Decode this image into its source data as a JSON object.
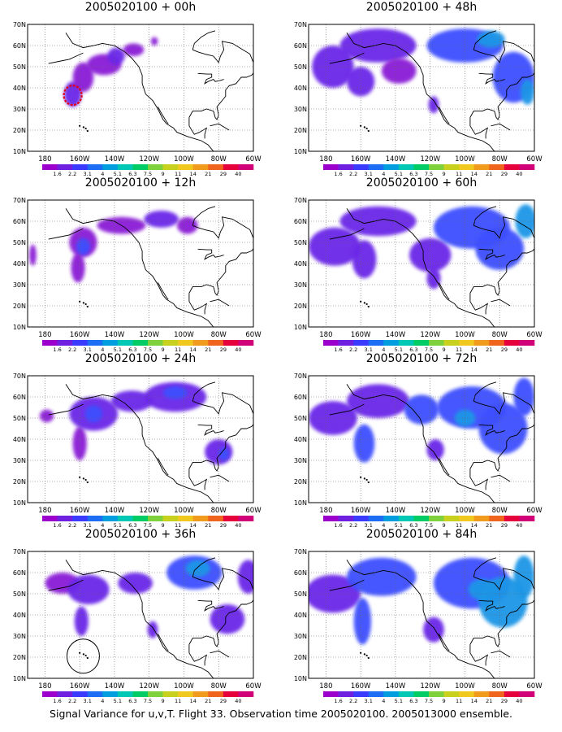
{
  "figure": {
    "caption": "Signal Variance for u,v,T. Flight 33. Observation time 2005020100. 2005013000 ensemble."
  },
  "colorbar": {
    "tick_labels": [
      "1.6",
      "2.2",
      "3.1",
      "4",
      "5.1",
      "6.3",
      "7.5",
      "9",
      "11",
      "14",
      "21",
      "29",
      "40"
    ],
    "colors": [
      "#9b00cc",
      "#6e1fe0",
      "#3b3bff",
      "#1e6ef5",
      "#009ede",
      "#00c8b4",
      "#00cc66",
      "#7ed13a",
      "#c8d21e",
      "#f0c81e",
      "#f09a1e",
      "#f0641e",
      "#e6003c",
      "#d20078"
    ]
  },
  "axes": {
    "x_ticks": [
      "180",
      "160W",
      "140W",
      "120W",
      "100W",
      "80W",
      "60W"
    ],
    "y_ticks": [
      "10N",
      "20N",
      "30N",
      "40N",
      "50N",
      "60N",
      "70N"
    ]
  },
  "chart_data": [
    {
      "type": "heatmap",
      "title": "2005020100 + 00h",
      "xlim": [
        -190,
        -60
      ],
      "ylim": [
        10,
        70
      ],
      "blobs": [
        {
          "lon": -164,
          "lat": 37,
          "rx": 5,
          "ry": 6,
          "level": 1
        },
        {
          "lon": -158,
          "lat": 45,
          "rx": 6,
          "ry": 7,
          "level": 0
        },
        {
          "lon": -146,
          "lat": 51,
          "rx": 10,
          "ry": 5,
          "level": 0
        },
        {
          "lon": -139,
          "lat": 55,
          "rx": 5,
          "ry": 4,
          "level": 1
        },
        {
          "lon": -129,
          "lat": 58,
          "rx": 6,
          "ry": 3,
          "level": 0
        },
        {
          "lon": -117,
          "lat": 62,
          "rx": 2,
          "ry": 2,
          "level": 0
        }
      ]
    },
    {
      "type": "heatmap",
      "title": "2005020100 + 12h",
      "xlim": [
        -190,
        -60
      ],
      "ylim": [
        10,
        70
      ],
      "blobs": [
        {
          "lon": -187,
          "lat": 44,
          "rx": 2,
          "ry": 5,
          "level": 0
        },
        {
          "lon": -161,
          "lat": 38,
          "rx": 4,
          "ry": 7,
          "level": 0
        },
        {
          "lon": -158,
          "lat": 50,
          "rx": 8,
          "ry": 7,
          "level": 0
        },
        {
          "lon": -158,
          "lat": 48,
          "rx": 4,
          "ry": 4,
          "level": 2
        },
        {
          "lon": -136,
          "lat": 58,
          "rx": 14,
          "ry": 4,
          "level": 0
        },
        {
          "lon": -113,
          "lat": 61,
          "rx": 10,
          "ry": 4,
          "level": 1
        },
        {
          "lon": -98,
          "lat": 58,
          "rx": 6,
          "ry": 4,
          "level": 0
        }
      ]
    },
    {
      "type": "heatmap",
      "title": "2005020100 + 24h",
      "xlim": [
        -190,
        -60
      ],
      "ylim": [
        10,
        70
      ],
      "blobs": [
        {
          "lon": -179,
          "lat": 51,
          "rx": 4,
          "ry": 3,
          "level": 0
        },
        {
          "lon": -160,
          "lat": 38,
          "rx": 4,
          "ry": 8,
          "level": 0
        },
        {
          "lon": -152,
          "lat": 52,
          "rx": 14,
          "ry": 8,
          "level": 1
        },
        {
          "lon": -152,
          "lat": 52,
          "rx": 5,
          "ry": 4,
          "level": 2
        },
        {
          "lon": -130,
          "lat": 58,
          "rx": 12,
          "ry": 5,
          "level": 1
        },
        {
          "lon": -105,
          "lat": 60,
          "rx": 18,
          "ry": 7,
          "level": 1
        },
        {
          "lon": -105,
          "lat": 62,
          "rx": 7,
          "ry": 3,
          "level": 2
        },
        {
          "lon": -80,
          "lat": 34,
          "rx": 8,
          "ry": 6,
          "level": 1
        },
        {
          "lon": -77,
          "lat": 33,
          "rx": 3,
          "ry": 3,
          "level": 2
        }
      ]
    },
    {
      "type": "heatmap",
      "title": "2005020100 + 36h",
      "xlim": [
        -190,
        -60
      ],
      "ylim": [
        10,
        70
      ],
      "blobs": [
        {
          "lon": -170,
          "lat": 55,
          "rx": 10,
          "ry": 5,
          "level": 0
        },
        {
          "lon": -159,
          "lat": 37,
          "rx": 4,
          "ry": 7,
          "level": 1
        },
        {
          "lon": -155,
          "lat": 52,
          "rx": 12,
          "ry": 7,
          "level": 1
        },
        {
          "lon": -128,
          "lat": 55,
          "rx": 10,
          "ry": 5,
          "level": 1
        },
        {
          "lon": -118,
          "lat": 33,
          "rx": 3,
          "ry": 4,
          "level": 1
        },
        {
          "lon": -94,
          "lat": 60,
          "rx": 16,
          "ry": 8,
          "level": 2
        },
        {
          "lon": -92,
          "lat": 62,
          "rx": 7,
          "ry": 4,
          "level": 3
        },
        {
          "lon": -75,
          "lat": 38,
          "rx": 10,
          "ry": 7,
          "level": 1
        },
        {
          "lon": -63,
          "lat": 58,
          "rx": 6,
          "ry": 8,
          "level": 1
        }
      ]
    },
    {
      "type": "heatmap",
      "title": "2005020100 + 48h",
      "xlim": [
        -190,
        -60
      ],
      "ylim": [
        10,
        70
      ],
      "blobs": [
        {
          "lon": -176,
          "lat": 50,
          "rx": 12,
          "ry": 10,
          "level": 1
        },
        {
          "lon": -160,
          "lat": 43,
          "rx": 8,
          "ry": 7,
          "level": 1
        },
        {
          "lon": -150,
          "lat": 60,
          "rx": 22,
          "ry": 8,
          "level": 1
        },
        {
          "lon": -138,
          "lat": 48,
          "rx": 10,
          "ry": 6,
          "level": 0
        },
        {
          "lon": -118,
          "lat": 32,
          "rx": 3,
          "ry": 4,
          "level": 1
        },
        {
          "lon": -100,
          "lat": 60,
          "rx": 22,
          "ry": 8,
          "level": 2
        },
        {
          "lon": -85,
          "lat": 63,
          "rx": 8,
          "ry": 4,
          "level": 3
        },
        {
          "lon": -72,
          "lat": 45,
          "rx": 12,
          "ry": 12,
          "level": 2
        },
        {
          "lon": -64,
          "lat": 38,
          "rx": 4,
          "ry": 6,
          "level": 3
        }
      ]
    },
    {
      "type": "heatmap",
      "title": "2005020100 + 60h",
      "xlim": [
        -190,
        -60
      ],
      "ylim": [
        10,
        70
      ],
      "blobs": [
        {
          "lon": -175,
          "lat": 48,
          "rx": 15,
          "ry": 9,
          "level": 1
        },
        {
          "lon": -158,
          "lat": 42,
          "rx": 7,
          "ry": 9,
          "level": 1
        },
        {
          "lon": -150,
          "lat": 60,
          "rx": 22,
          "ry": 7,
          "level": 1
        },
        {
          "lon": -120,
          "lat": 44,
          "rx": 12,
          "ry": 8,
          "level": 1
        },
        {
          "lon": -118,
          "lat": 33,
          "rx": 4,
          "ry": 5,
          "level": 1
        },
        {
          "lon": -96,
          "lat": 57,
          "rx": 22,
          "ry": 10,
          "level": 2
        },
        {
          "lon": -80,
          "lat": 47,
          "rx": 14,
          "ry": 10,
          "level": 2
        },
        {
          "lon": -65,
          "lat": 60,
          "rx": 6,
          "ry": 8,
          "level": 3
        }
      ]
    },
    {
      "type": "heatmap",
      "title": "2005020100 + 72h",
      "xlim": [
        -190,
        -60
      ],
      "ylim": [
        10,
        70
      ],
      "blobs": [
        {
          "lon": -176,
          "lat": 50,
          "rx": 14,
          "ry": 8,
          "level": 1
        },
        {
          "lon": -158,
          "lat": 38,
          "rx": 6,
          "ry": 9,
          "level": 2
        },
        {
          "lon": -150,
          "lat": 58,
          "rx": 18,
          "ry": 8,
          "level": 1
        },
        {
          "lon": -125,
          "lat": 54,
          "rx": 10,
          "ry": 7,
          "level": 2
        },
        {
          "lon": -117,
          "lat": 35,
          "rx": 5,
          "ry": 5,
          "level": 1
        },
        {
          "lon": -96,
          "lat": 55,
          "rx": 20,
          "ry": 10,
          "level": 2
        },
        {
          "lon": -100,
          "lat": 50,
          "rx": 6,
          "ry": 4,
          "level": 3
        },
        {
          "lon": -78,
          "lat": 45,
          "rx": 14,
          "ry": 12,
          "level": 2
        },
        {
          "lon": -66,
          "lat": 60,
          "rx": 6,
          "ry": 9,
          "level": 2
        }
      ]
    },
    {
      "type": "heatmap",
      "title": "2005020100 + 84h",
      "xlim": [
        -190,
        -60
      ],
      "ylim": [
        10,
        70
      ],
      "blobs": [
        {
          "lon": -176,
          "lat": 50,
          "rx": 16,
          "ry": 9,
          "level": 1
        },
        {
          "lon": -159,
          "lat": 37,
          "rx": 5,
          "ry": 11,
          "level": 2
        },
        {
          "lon": -148,
          "lat": 58,
          "rx": 20,
          "ry": 9,
          "level": 2
        },
        {
          "lon": -118,
          "lat": 33,
          "rx": 6,
          "ry": 6,
          "level": 1
        },
        {
          "lon": -96,
          "lat": 55,
          "rx": 22,
          "ry": 12,
          "level": 2
        },
        {
          "lon": -90,
          "lat": 52,
          "rx": 8,
          "ry": 5,
          "level": 3
        },
        {
          "lon": -78,
          "lat": 46,
          "rx": 14,
          "ry": 12,
          "level": 3
        },
        {
          "lon": -66,
          "lat": 58,
          "rx": 6,
          "ry": 10,
          "level": 3
        }
      ]
    }
  ]
}
